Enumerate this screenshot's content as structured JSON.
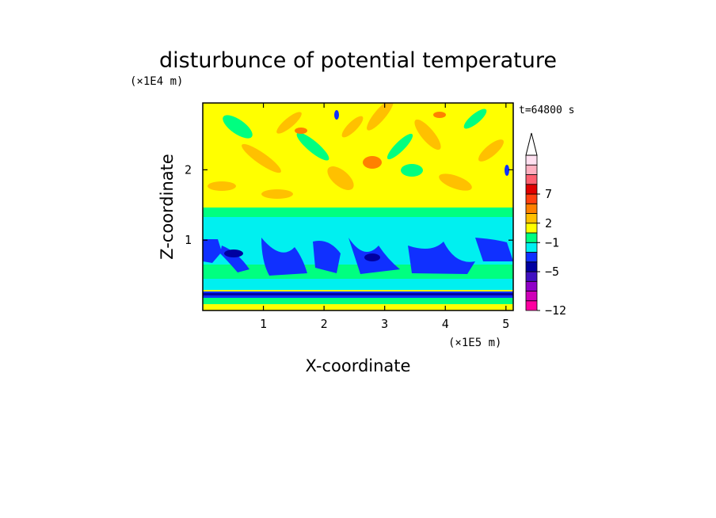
{
  "chart_data": {
    "type": "heatmap",
    "title": "disturbunce of potential temperature",
    "time_label": "t=64800 s",
    "xlabel": "X-coordinate",
    "ylabel": "Z-coordinate",
    "x_unit": "(×1E5 m)",
    "y_unit": "(×1E4 m)",
    "xlim": [
      0,
      5.12
    ],
    "ylim": [
      0,
      2.95
    ],
    "x_ticks": [
      "1",
      "2",
      "3",
      "4",
      "5"
    ],
    "x_tick_values": [
      1,
      2,
      3,
      4,
      5
    ],
    "y_ticks": [
      "1",
      "2"
    ],
    "y_tick_values": [
      1,
      2
    ],
    "colorbar": {
      "extend_top": true,
      "colors": [
        "#ff00a0",
        "#d000b8",
        "#9000c8",
        "#4010c0",
        "#0000a0",
        "#1030ff",
        "#00f0f0",
        "#00ff80",
        "#ffff00",
        "#ffc000",
        "#ff8000",
        "#ff4010",
        "#e00000",
        "#ff6070",
        "#ffb0c0",
        "#ffe0f0"
      ],
      "tick_labels": [
        "-12",
        "-5",
        "-1",
        "2",
        "7"
      ],
      "tick_index": [
        0,
        4,
        7,
        9,
        12
      ]
    },
    "field_bands": [
      {
        "z_range": [
          0.0,
          0.1
        ],
        "value": "1"
      },
      {
        "z_range": [
          0.18,
          0.28
        ],
        "value": "-4"
      },
      {
        "z_range": [
          0.3,
          0.5
        ],
        "value": "1"
      },
      {
        "z_range": [
          0.5,
          0.9
        ],
        "value": "-1"
      },
      {
        "z_range": [
          0.9,
          1.2
        ],
        "value": "-3"
      },
      {
        "z_range": [
          1.2,
          1.45
        ],
        "value": "-1"
      },
      {
        "z_range": [
          1.45,
          1.6
        ],
        "value": "0"
      },
      {
        "z_range": [
          1.6,
          2.95
        ],
        "value": "2"
      }
    ]
  }
}
